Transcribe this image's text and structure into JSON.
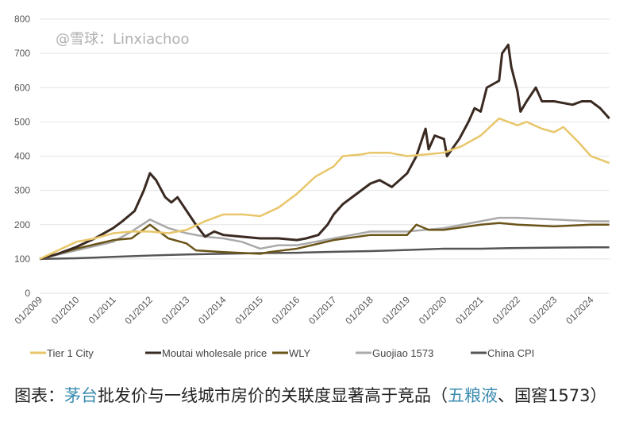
{
  "chart_data": {
    "type": "line",
    "title": "",
    "xlabel": "",
    "ylabel": "",
    "ylim": [
      0,
      800
    ],
    "yticks": [
      0,
      100,
      200,
      300,
      400,
      500,
      600,
      700,
      800
    ],
    "xticks": [
      "01/2009",
      "01/2010",
      "01/2011",
      "01/2012",
      "01/2013",
      "01/2014",
      "01/2015",
      "01/2016",
      "01/2017",
      "01/2018",
      "01/2019",
      "01/2020",
      "01/2021",
      "01/2022",
      "01/2023",
      "01/2024"
    ],
    "xlim": [
      "2009-01",
      "2024-07"
    ],
    "grid": "horizontal",
    "legend_position": "bottom",
    "series": [
      {
        "name": "Tier 1 City",
        "color": "#e8c66a",
        "points": [
          [
            "2009-01",
            100
          ],
          [
            "2010-01",
            150
          ],
          [
            "2010-07",
            160
          ],
          [
            "2011-01",
            175
          ],
          [
            "2011-07",
            180
          ],
          [
            "2012-01",
            180
          ],
          [
            "2012-07",
            175
          ],
          [
            "2013-01",
            185
          ],
          [
            "2013-07",
            210
          ],
          [
            "2014-01",
            230
          ],
          [
            "2014-07",
            230
          ],
          [
            "2015-01",
            225
          ],
          [
            "2015-07",
            250
          ],
          [
            "2016-01",
            290
          ],
          [
            "2016-07",
            340
          ],
          [
            "2017-01",
            370
          ],
          [
            "2017-04",
            400
          ],
          [
            "2017-10",
            405
          ],
          [
            "2018-01",
            410
          ],
          [
            "2018-07",
            410
          ],
          [
            "2019-01",
            400
          ],
          [
            "2019-07",
            405
          ],
          [
            "2020-01",
            410
          ],
          [
            "2020-07",
            430
          ],
          [
            "2021-01",
            460
          ],
          [
            "2021-07",
            510
          ],
          [
            "2022-01",
            490
          ],
          [
            "2022-04",
            500
          ],
          [
            "2022-09",
            480
          ],
          [
            "2023-01",
            470
          ],
          [
            "2023-04",
            485
          ],
          [
            "2023-09",
            440
          ],
          [
            "2024-01",
            400
          ],
          [
            "2024-07",
            380
          ]
        ]
      },
      {
        "name": "Moutai wholesale price",
        "color": "#3a2a22",
        "points": [
          [
            "2009-01",
            100
          ],
          [
            "2009-07",
            115
          ],
          [
            "2010-01",
            135
          ],
          [
            "2010-07",
            160
          ],
          [
            "2011-01",
            190
          ],
          [
            "2011-04",
            210
          ],
          [
            "2011-08",
            240
          ],
          [
            "2011-11",
            300
          ],
          [
            "2012-01",
            350
          ],
          [
            "2012-03",
            330
          ],
          [
            "2012-06",
            280
          ],
          [
            "2012-08",
            265
          ],
          [
            "2012-10",
            280
          ],
          [
            "2013-01",
            240
          ],
          [
            "2013-04",
            200
          ],
          [
            "2013-07",
            165
          ],
          [
            "2013-10",
            180
          ],
          [
            "2014-01",
            170
          ],
          [
            "2014-07",
            165
          ],
          [
            "2015-01",
            160
          ],
          [
            "2015-07",
            160
          ],
          [
            "2016-01",
            155
          ],
          [
            "2016-04",
            160
          ],
          [
            "2016-08",
            170
          ],
          [
            "2016-11",
            200
          ],
          [
            "2017-01",
            230
          ],
          [
            "2017-04",
            260
          ],
          [
            "2017-07",
            280
          ],
          [
            "2017-10",
            300
          ],
          [
            "2018-01",
            320
          ],
          [
            "2018-04",
            330
          ],
          [
            "2018-08",
            310
          ],
          [
            "2019-01",
            350
          ],
          [
            "2019-04",
            400
          ],
          [
            "2019-07",
            480
          ],
          [
            "2019-08",
            420
          ],
          [
            "2019-10",
            460
          ],
          [
            "2020-01",
            450
          ],
          [
            "2020-02",
            400
          ],
          [
            "2020-06",
            450
          ],
          [
            "2020-09",
            500
          ],
          [
            "2020-11",
            540
          ],
          [
            "2021-01",
            530
          ],
          [
            "2021-03",
            600
          ],
          [
            "2021-07",
            620
          ],
          [
            "2021-08",
            700
          ],
          [
            "2021-10",
            725
          ],
          [
            "2021-11",
            660
          ],
          [
            "2022-01",
            590
          ],
          [
            "2022-02",
            530
          ],
          [
            "2022-04",
            560
          ],
          [
            "2022-07",
            600
          ],
          [
            "2022-09",
            560
          ],
          [
            "2023-01",
            560
          ],
          [
            "2023-07",
            550
          ],
          [
            "2023-10",
            560
          ],
          [
            "2024-01",
            560
          ],
          [
            "2024-04",
            540
          ],
          [
            "2024-07",
            510
          ]
        ]
      },
      {
        "name": "WLY",
        "color": "#6b5418",
        "points": [
          [
            "2009-01",
            100
          ],
          [
            "2010-01",
            130
          ],
          [
            "2011-01",
            155
          ],
          [
            "2011-07",
            160
          ],
          [
            "2012-01",
            200
          ],
          [
            "2012-07",
            160
          ],
          [
            "2013-01",
            145
          ],
          [
            "2013-04",
            125
          ],
          [
            "2014-01",
            120
          ],
          [
            "2015-01",
            115
          ],
          [
            "2015-04",
            120
          ],
          [
            "2016-01",
            130
          ],
          [
            "2017-01",
            155
          ],
          [
            "2018-01",
            170
          ],
          [
            "2019-01",
            170
          ],
          [
            "2019-04",
            200
          ],
          [
            "2019-08",
            185
          ],
          [
            "2020-01",
            185
          ],
          [
            "2021-01",
            200
          ],
          [
            "2021-07",
            205
          ],
          [
            "2022-01",
            200
          ],
          [
            "2023-01",
            195
          ],
          [
            "2024-01",
            200
          ],
          [
            "2024-07",
            200
          ]
        ]
      },
      {
        "name": "Guojiao 1573",
        "color": "#aaaaaa",
        "points": [
          [
            "2009-01",
            100
          ],
          [
            "2010-01",
            125
          ],
          [
            "2011-01",
            150
          ],
          [
            "2011-07",
            180
          ],
          [
            "2012-01",
            215
          ],
          [
            "2012-07",
            190
          ],
          [
            "2013-01",
            175
          ],
          [
            "2013-07",
            165
          ],
          [
            "2014-01",
            160
          ],
          [
            "2014-07",
            150
          ],
          [
            "2015-01",
            130
          ],
          [
            "2015-07",
            140
          ],
          [
            "2016-01",
            140
          ],
          [
            "2017-01",
            160
          ],
          [
            "2018-01",
            180
          ],
          [
            "2019-01",
            180
          ],
          [
            "2020-01",
            190
          ],
          [
            "2020-07",
            200
          ],
          [
            "2021-01",
            210
          ],
          [
            "2021-07",
            220
          ],
          [
            "2022-01",
            220
          ],
          [
            "2023-01",
            215
          ],
          [
            "2024-01",
            210
          ],
          [
            "2024-07",
            210
          ]
        ]
      },
      {
        "name": "China CPI",
        "color": "#555555",
        "points": [
          [
            "2009-01",
            100
          ],
          [
            "2010-01",
            102
          ],
          [
            "2011-01",
            106
          ],
          [
            "2012-01",
            110
          ],
          [
            "2013-01",
            113
          ],
          [
            "2014-01",
            115
          ],
          [
            "2015-01",
            117
          ],
          [
            "2016-01",
            118
          ],
          [
            "2017-01",
            121
          ],
          [
            "2018-01",
            123
          ],
          [
            "2019-01",
            126
          ],
          [
            "2020-01",
            130
          ],
          [
            "2021-01",
            130
          ],
          [
            "2022-01",
            132
          ],
          [
            "2023-01",
            133
          ],
          [
            "2024-01",
            134
          ],
          [
            "2024-07",
            134
          ]
        ]
      }
    ]
  },
  "watermark": "@雪球：Linxiachoo",
  "caption": {
    "prefix": "图表：",
    "hl1": "茅台",
    "mid": "批发价与一线城市房价的关联度显著高于竞品（",
    "hl2": "五粮液",
    "suffix": "、国窖1573）"
  }
}
